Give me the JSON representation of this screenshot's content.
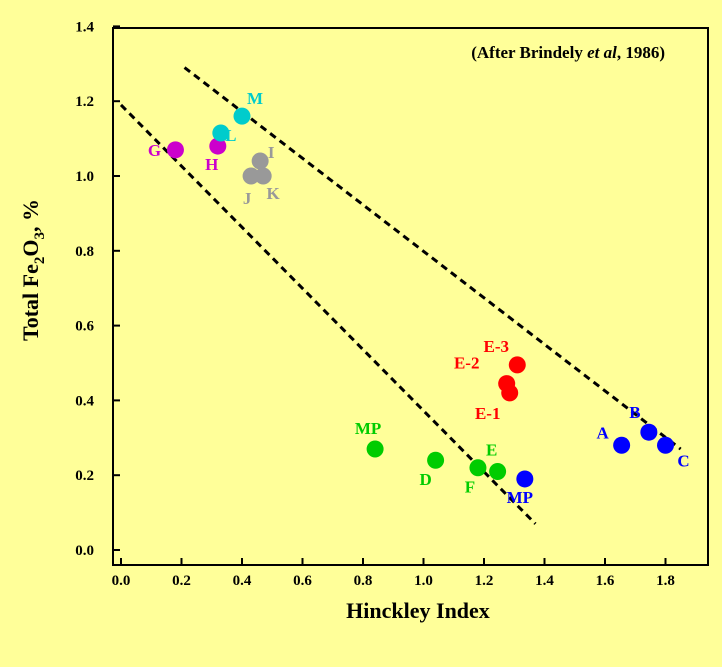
{
  "chart_data": {
    "type": "scatter",
    "annotation": {
      "prefix": "(After Brindely ",
      "italic": "et al",
      "suffix": ", 1986)"
    },
    "xlabel": "Hinckley Index",
    "ylabel": {
      "pre": "Total Fe",
      "sub1": "2",
      "mid": "O",
      "sub2": "3",
      "post": ", %"
    },
    "xlim": [
      0.0,
      1.9
    ],
    "ylim": [
      0.0,
      1.4
    ],
    "x_ticks": [
      "0.0",
      "0.2",
      "0.4",
      "0.6",
      "0.8",
      "1.0",
      "1.2",
      "1.4",
      "1.6",
      "1.8"
    ],
    "y_ticks": [
      "0.0",
      "0.2",
      "0.4",
      "0.6",
      "0.8",
      "1.0",
      "1.2",
      "1.4"
    ],
    "grid": false,
    "points": [
      {
        "label": "G",
        "x": 0.18,
        "y": 1.07,
        "color": "#cc00cc"
      },
      {
        "label": "H",
        "x": 0.32,
        "y": 1.08,
        "color": "#cc00cc"
      },
      {
        "label": "L",
        "x": 0.33,
        "y": 1.115,
        "color": "#00cccc"
      },
      {
        "label": "M",
        "x": 0.4,
        "y": 1.16,
        "color": "#00cccc"
      },
      {
        "label": "I",
        "x": 0.46,
        "y": 1.04,
        "color": "#999999"
      },
      {
        "label": "J",
        "x": 0.43,
        "y": 1.0,
        "color": "#999999"
      },
      {
        "label": "K",
        "x": 0.47,
        "y": 1.0,
        "color": "#999999"
      },
      {
        "label": "E-3",
        "x": 1.31,
        "y": 0.495,
        "color": "#ff0000"
      },
      {
        "label": "E-2",
        "x": 1.275,
        "y": 0.445,
        "color": "#ff0000"
      },
      {
        "label": "E-1",
        "x": 1.285,
        "y": 0.42,
        "color": "#ff0000"
      },
      {
        "label": "MP",
        "x": 0.84,
        "y": 0.27,
        "color": "#00cc00"
      },
      {
        "label": "D",
        "x": 1.04,
        "y": 0.24,
        "color": "#00cc00"
      },
      {
        "label": "F",
        "x": 1.18,
        "y": 0.22,
        "color": "#00cc00"
      },
      {
        "label": "E",
        "x": 1.245,
        "y": 0.21,
        "color": "#00cc00"
      },
      {
        "label": "MP",
        "x": 1.335,
        "y": 0.19,
        "color": "#0000ff"
      },
      {
        "label": "A",
        "x": 1.655,
        "y": 0.28,
        "color": "#0000ff"
      },
      {
        "label": "B",
        "x": 1.745,
        "y": 0.315,
        "color": "#0000ff"
      },
      {
        "label": "C",
        "x": 1.8,
        "y": 0.28,
        "color": "#0000ff"
      }
    ],
    "lines": [
      {
        "name": "upper",
        "x": [
          0.21,
          1.85
        ],
        "y": [
          1.29,
          0.27
        ],
        "style": "dashed"
      },
      {
        "name": "lower",
        "x": [
          0.0,
          1.37
        ],
        "y": [
          1.19,
          0.07
        ],
        "style": "dashed"
      }
    ]
  }
}
